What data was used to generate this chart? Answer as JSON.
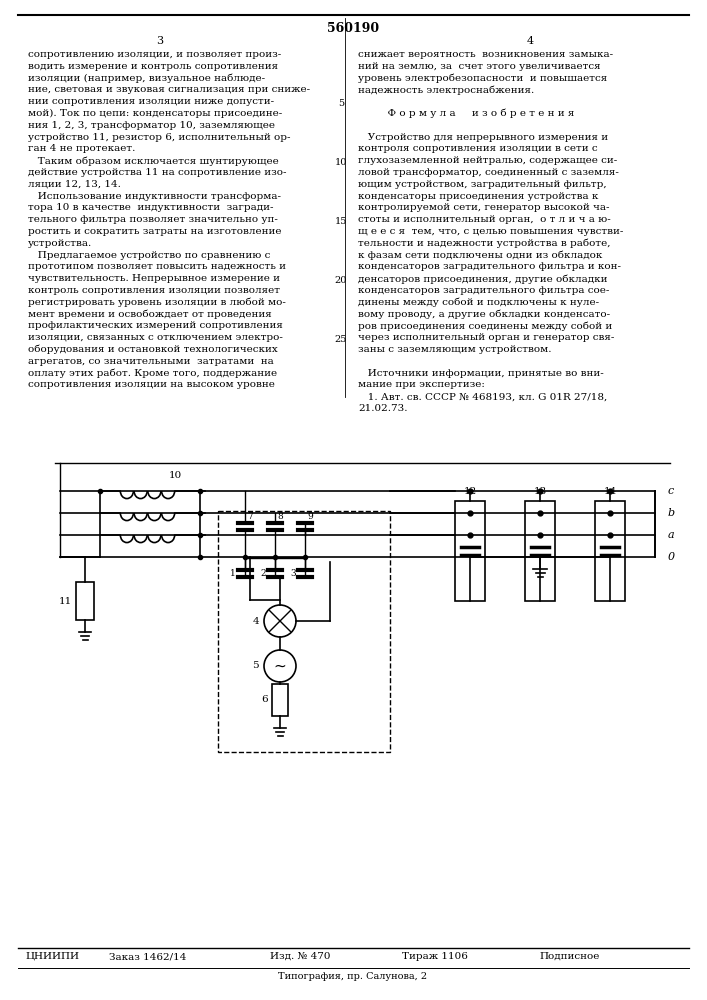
{
  "title": "560190",
  "bg_color": "#ffffff",
  "left_col_text": "сопротивлению изоляции, и позволяет производить измерение и контроль сопротивления изоляции (например, визуальное наблюдение, световая и звуковая сигнализация при снижении сопротивления изоляции ниже допустимой). Ток по цепи: конденсаторы присоединения 1, 2, 3, трансформатор 10, заземляющее устройство 11, резистор 6, исполнительный орган 4 не протекает.\n    Таким образом исключается шунтирующее действие устройства 11 на сопротивление изоляции 12, 13, 14.\n    Использование индуктивности трансформатора 10 в качестве индуктивности заградительного фильтра позволяет значительно упростить и сократить затраты на изготовление устройства.\n    Предлагаемое устройство по сравнению с прототипом позволяет повысить надежность и чувствительность. Непрерывное измерение и контроль сопротивления изоляции позволяет регистрировать уровень изоляции в любой момент времени и освобождает от проведения профилактических измерений сопротивления изоляции, связанных с отключением электрооборудования и остановкой технологических агрегатов, со значительными затратами на оплату этих работ. Кроме того, поддержание сопротивления изоляции на высоком уровне",
  "right_col_text": "снижает вероятность  возникновения замыканий на землю, за  счет этого увеличивается уровень электробезопасности  и повышается надежность электроснабжения.",
  "formula_title": "Ф о р м у л а     и з о б р е т е н и я",
  "formula_text": "    Устройство для непрерывного измерения и контроля сопротивления изоляции в сети с глухозаземленной нейтралью, содержащее силовой трансформатор, соединенный с заземляющим устройством, заградительный фильтр, конденсаторы присоединения устройства к контролируемой сети, генератор высокой частоты и исполнительный орган, о т л и ч а ю щ е е с я тем, что, с целью повышения чувствительности и надежности устройства в работе, к фазам сети подключены одни из обкладок конденсаторов заградительного фильтра и конденсаторов присоединения, другие обкладки конденсаторов заградительного фильтра соединены между собой и подключены к нулевому проводу, а другие обкладки конденсаторов присоединения соединены между собой и через исполнительный орган и генератор связаны с заземляющим устройством.",
  "sources_text": "    Источники информации, принятые во внимание при экспертизе:\n    1. Авт. св. СССР № 468193, кл. G 01R 27/18, 21.02.73.",
  "footer_left": "ЦНИИПИ",
  "footer_items": [
    "Заказ 1462/14",
    "Изд. № 470",
    "Тираж 1106",
    "Подписное"
  ],
  "footer_bottom": "Типография, пр. Салунова, 2",
  "line_numbers": [
    5,
    10,
    15,
    20,
    25
  ]
}
